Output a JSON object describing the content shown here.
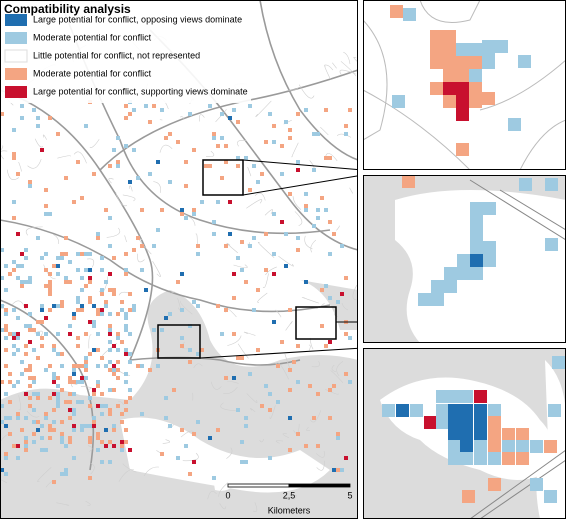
{
  "legend": {
    "title": "Compatibility analysis",
    "items": [
      {
        "label": "Large potential for conflict, opposing views dominate",
        "color": "#1f6eb0"
      },
      {
        "label": "Moderate potential for conflict",
        "color": "#9ecae1"
      },
      {
        "label": "Little potential for conflict, not represented",
        "color": "#ffffff"
      },
      {
        "label": "Moderate potential for conflict",
        "color": "#f4a582"
      },
      {
        "label": "Large potential for conflict, supporting views dominate",
        "color": "#c8102e"
      }
    ]
  },
  "scale_bar": {
    "ticks": [
      "0",
      "2,5",
      "5"
    ],
    "unit": "Kilometers"
  }
}
